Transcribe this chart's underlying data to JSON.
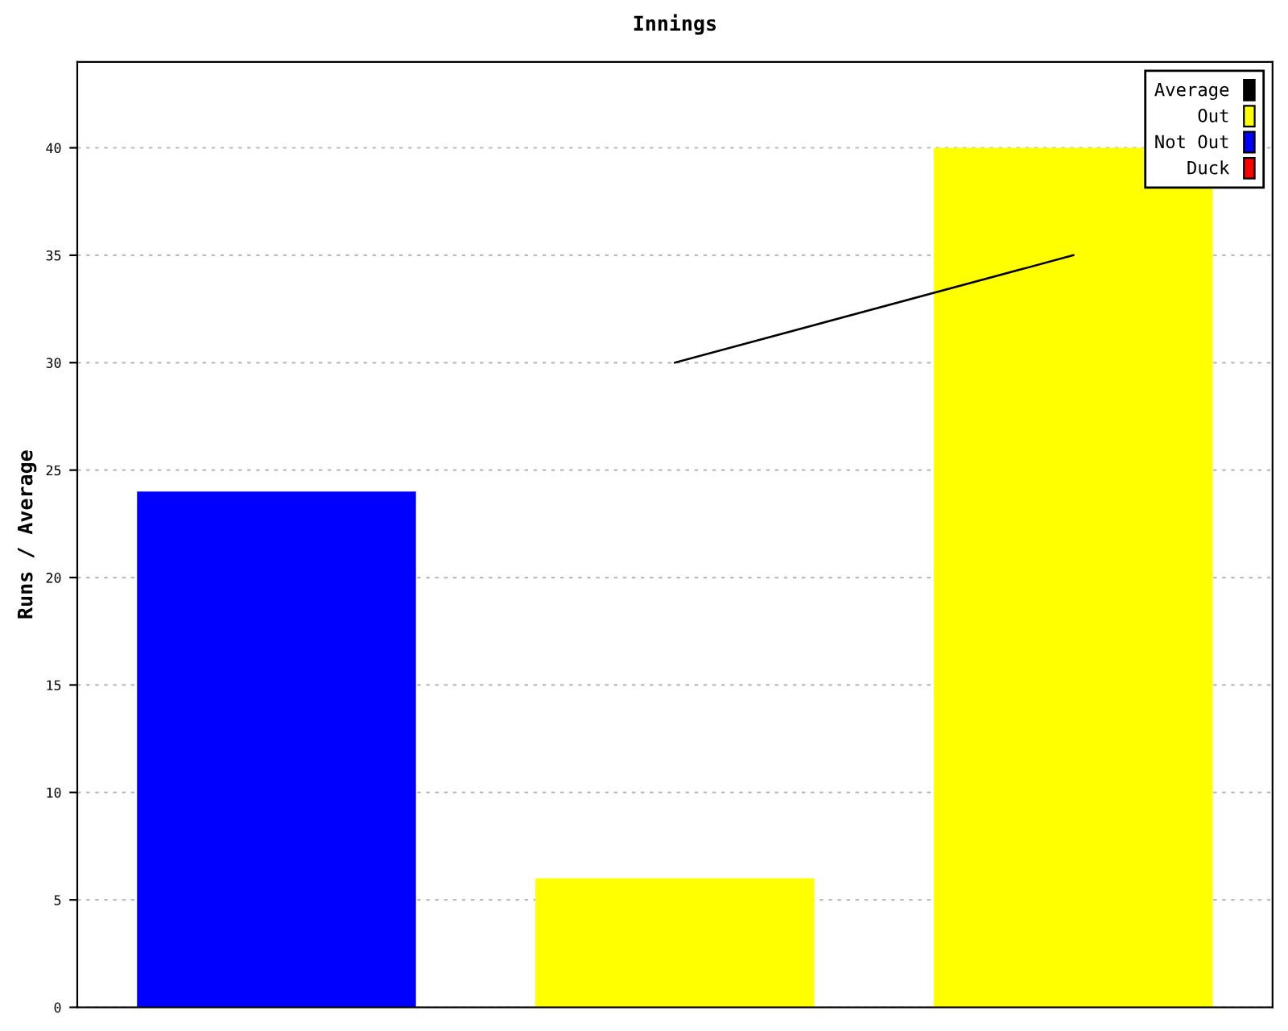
{
  "chart_data": {
    "type": "bar",
    "title": "Innings",
    "ylabel": "Runs / Average",
    "categories": [
      null,
      null,
      null
    ],
    "series": [
      {
        "name": "Average",
        "type": "line",
        "color": "#000000",
        "values": [
          null,
          30,
          35
        ]
      },
      {
        "name": "Out",
        "color": "#ffff00",
        "values": [
          null,
          6,
          40
        ]
      },
      {
        "name": "Not Out",
        "color": "#0000ff",
        "values": [
          24,
          null,
          null
        ]
      },
      {
        "name": "Duck",
        "color": "#ff0000",
        "values": [
          null,
          null,
          null
        ]
      }
    ],
    "ylim": [
      0,
      44
    ],
    "yticks": [
      0,
      5,
      10,
      15,
      20,
      25,
      30,
      35,
      40
    ],
    "grid": "y",
    "legend": "top right",
    "marker": "none",
    "line_style": "solid"
  }
}
